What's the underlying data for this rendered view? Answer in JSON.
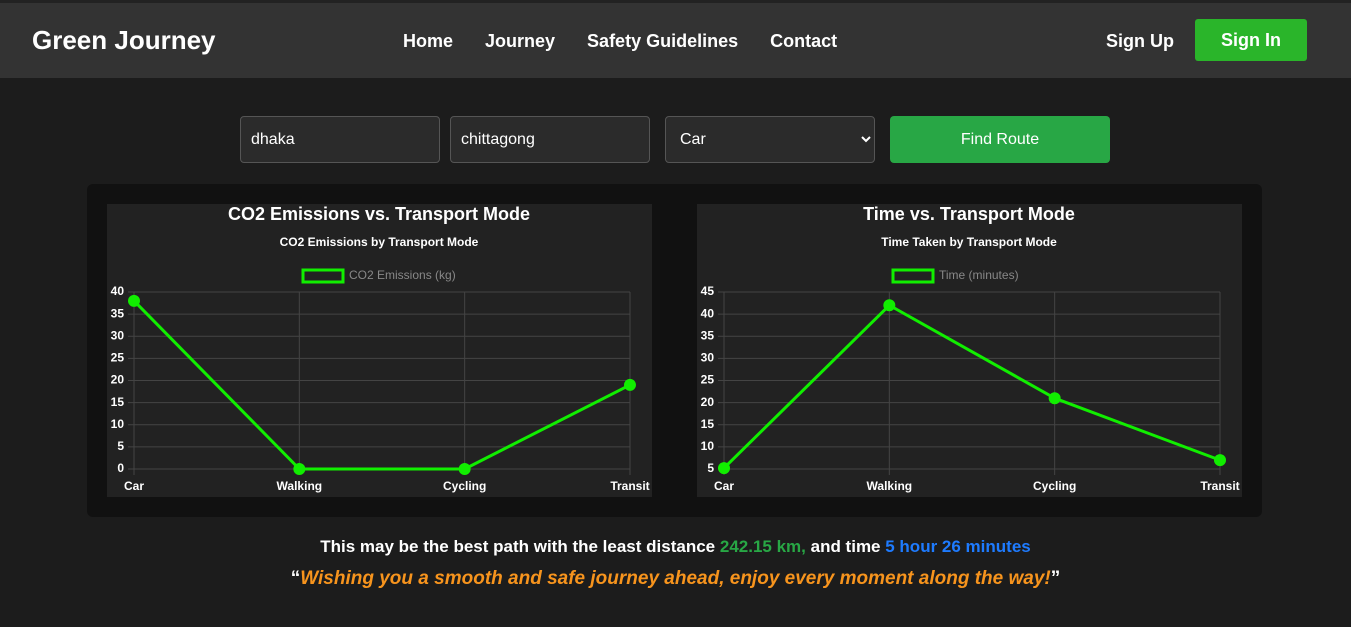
{
  "header": {
    "logo": "Green Journey",
    "nav": [
      "Home",
      "Journey",
      "Safety Guidelines",
      "Contact"
    ],
    "sign_up": "Sign Up",
    "sign_in": "Sign In"
  },
  "form": {
    "from": "dhaka",
    "to": "chittagong",
    "mode": "Car",
    "button": "Find Route"
  },
  "chart_data": [
    {
      "type": "line",
      "title": "CO2 Emissions vs. Transport Mode",
      "subtitle": "CO2 Emissions by Transport Mode",
      "categories": [
        "Car",
        "Walking",
        "Cycling",
        "Transit"
      ],
      "series": [
        {
          "name": "CO2 Emissions (kg)",
          "color": "#11ee00",
          "values": [
            38,
            0,
            0,
            19
          ]
        }
      ],
      "ylim": [
        0,
        40
      ],
      "yticks": [
        0,
        5,
        10,
        15,
        20,
        25,
        30,
        35,
        40
      ],
      "grid": true
    },
    {
      "type": "line",
      "title": "Time vs. Transport Mode",
      "subtitle": "Time Taken by Transport Mode",
      "categories": [
        "Car",
        "Walking",
        "Cycling",
        "Transit"
      ],
      "series": [
        {
          "name": "Time (minutes)",
          "color": "#11ee00",
          "values": [
            5.2,
            42,
            21,
            7
          ]
        }
      ],
      "ylim": [
        5,
        45
      ],
      "yticks": [
        5,
        10,
        15,
        20,
        25,
        30,
        35,
        40,
        45
      ],
      "grid": true
    }
  ],
  "result": {
    "line1": "This may be the best path with the least distance",
    "distance": "242.15 km,",
    "and_time": "and time",
    "time": "5 hour 26 minutes",
    "open_quote": "“",
    "wish": "Wishing you a smooth and safe journey ahead, enjoy every moment along the way!",
    "close_quote": "”"
  }
}
